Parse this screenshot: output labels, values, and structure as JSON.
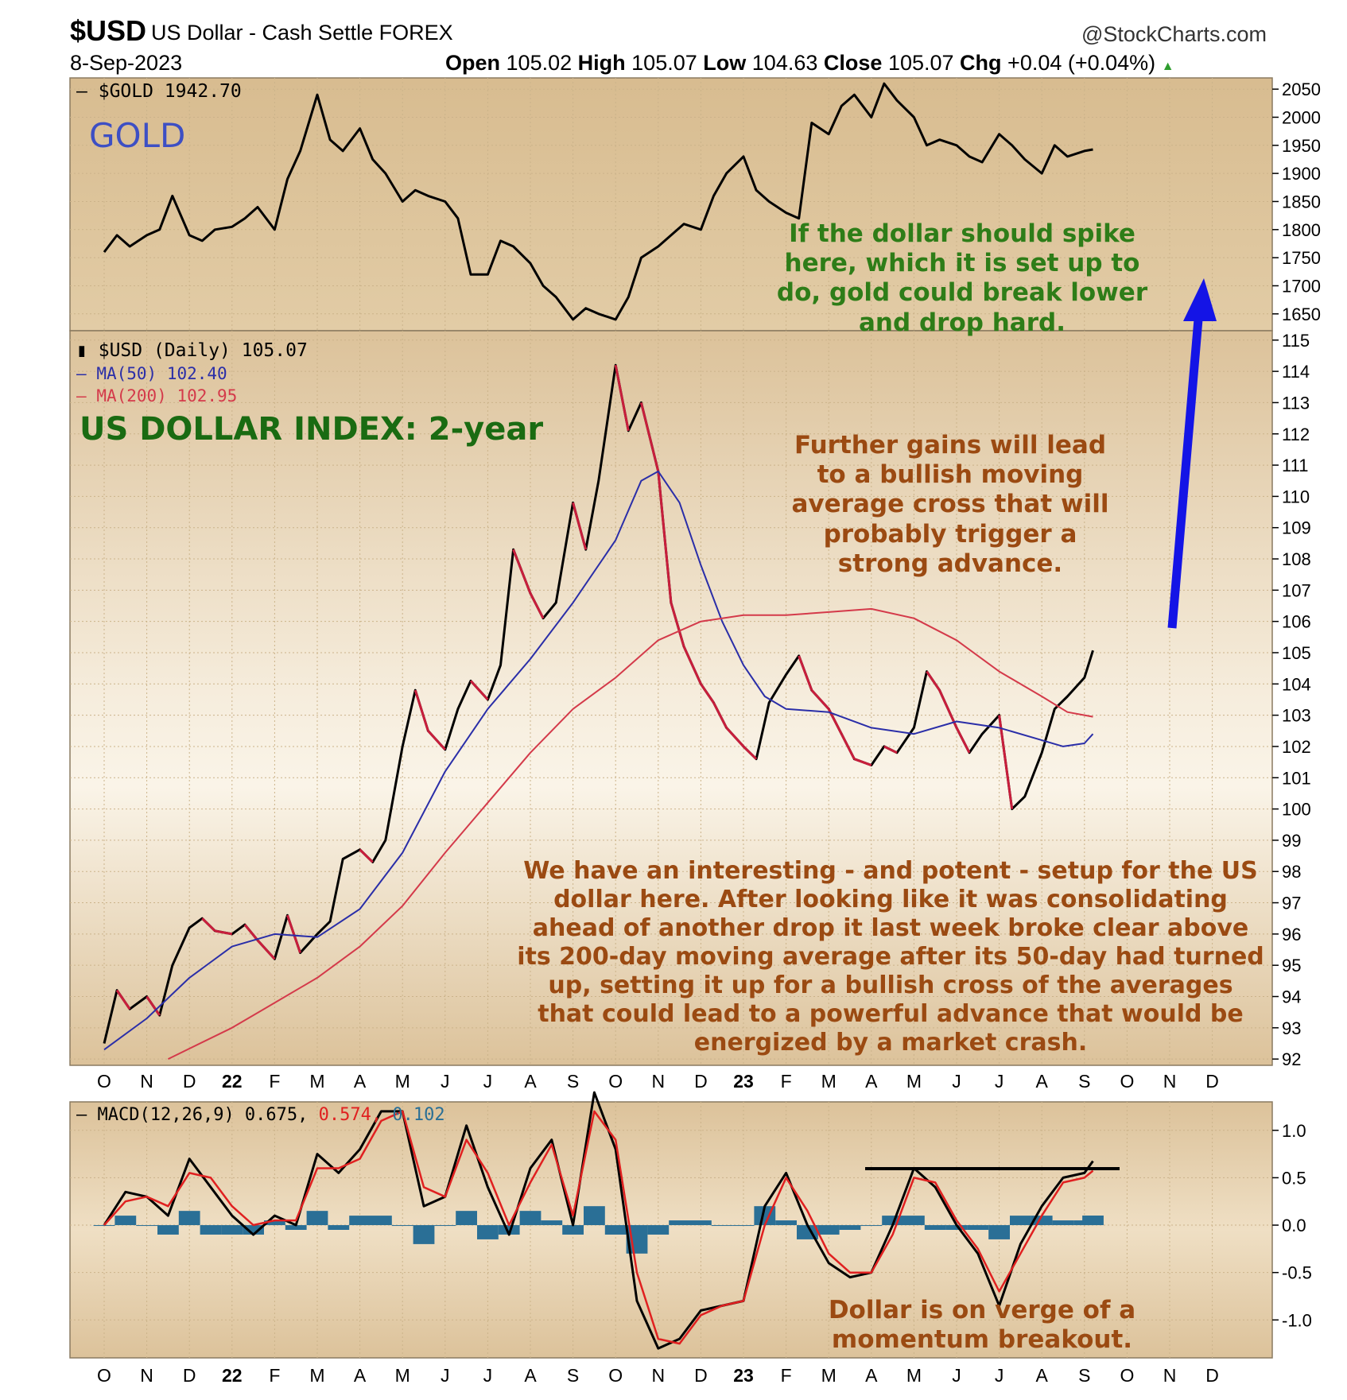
{
  "header": {
    "symbol": "$USD",
    "description": "US Dollar - Cash Settle FOREX",
    "source": "@StockCharts.com",
    "date": "8-Sep-2023",
    "open_label": "Open",
    "open_value": "105.02",
    "high_label": "High",
    "high_value": "105.07",
    "low_label": "Low",
    "low_value": "104.63",
    "close_label": "Close",
    "close_value": "105.07",
    "chg_label": "Chg",
    "chg_value": "+0.04 (+0.04%)"
  },
  "colors": {
    "panel_bg": "#dcc29a",
    "panel_highlight": "#f6eddd",
    "price_up": "#000000",
    "price_down": "#c81e3c",
    "ma50": "#2a2ea8",
    "ma200": "#d43a4a",
    "macd_line": "#000000",
    "signal_line": "#e02020",
    "histogram": "#2a6f96",
    "arrow": "#1414e6",
    "annotation_brown": "#9b4a12",
    "annotation_green": "#2e7d18"
  },
  "labels": {
    "gold": "GOLD",
    "usd_index": "US DOLLAR INDEX: 2-year",
    "gold_legend": "$GOLD 1942.70",
    "usd_legend": "$USD (Daily) 105.07",
    "ma50_legend": "MA(50) 102.40",
    "ma200_legend": "MA(200) 102.95",
    "macd_legend_main": "MACD(12,26,9) 0.675,",
    "macd_legend_signal": "0.574,",
    "macd_legend_hist": "0.102"
  },
  "annotations": {
    "gold": "If the dollar should spike here, which it is set up to do, gold could break lower and drop hard.",
    "cross": "Further gains will lead to a bullish moving average cross that will probably trigger a strong advance.",
    "setup": "We have an interesting - and potent - setup for the US dollar here. After looking like it was consolidating ahead of another drop it last week broke clear above its 200-day moving average after its 50-day had turned up, setting it up for a bullish cross of the averages that could lead to a powerful advance that would be energized by a market crash.",
    "momentum": "Dollar is on verge of a momentum breakout."
  },
  "chart_data": [
    {
      "type": "line",
      "panel": "gold",
      "title": "$GOLD 1942.70",
      "ylim": [
        1620,
        2070
      ],
      "yticks": [
        1650,
        1700,
        1750,
        1800,
        1850,
        1900,
        1950,
        2000,
        2050
      ],
      "x_months": [
        "O",
        "N",
        "D",
        "22",
        "F",
        "M",
        "A",
        "M",
        "J",
        "J",
        "A",
        "S",
        "O",
        "N",
        "D",
        "23",
        "F",
        "M",
        "A",
        "M",
        "J",
        "J",
        "A",
        "S",
        "O",
        "N",
        "D"
      ],
      "series": [
        {
          "name": "$GOLD",
          "x": [
            0,
            0.3,
            0.6,
            1,
            1.3,
            1.6,
            2,
            2.3,
            2.6,
            3,
            3.3,
            3.6,
            4,
            4.3,
            4.6,
            5,
            5.3,
            5.6,
            6,
            6.3,
            6.6,
            7,
            7.3,
            7.6,
            8,
            8.3,
            8.6,
            9,
            9.3,
            9.6,
            10,
            10.3,
            10.6,
            11,
            11.3,
            11.6,
            12,
            12.3,
            12.6,
            13,
            13.3,
            13.6,
            14,
            14.3,
            14.6,
            15,
            15.3,
            15.6,
            16,
            16.3,
            16.6,
            17,
            17.3,
            17.6,
            18,
            18.3,
            18.6,
            19,
            19.3,
            19.6,
            20,
            20.3,
            20.6,
            21,
            21.3,
            21.6,
            22,
            22.3,
            22.6,
            23,
            23.2
          ],
          "values": [
            1760,
            1790,
            1770,
            1790,
            1800,
            1860,
            1790,
            1780,
            1800,
            1805,
            1820,
            1840,
            1800,
            1890,
            1940,
            2040,
            1960,
            1940,
            1980,
            1925,
            1900,
            1850,
            1870,
            1860,
            1850,
            1820,
            1720,
            1720,
            1780,
            1770,
            1740,
            1700,
            1680,
            1640,
            1660,
            1650,
            1640,
            1680,
            1750,
            1770,
            1790,
            1810,
            1800,
            1860,
            1900,
            1930,
            1870,
            1850,
            1830,
            1820,
            1990,
            1970,
            2020,
            2040,
            2000,
            2060,
            2030,
            2000,
            1950,
            1960,
            1950,
            1930,
            1920,
            1970,
            1950,
            1925,
            1900,
            1950,
            1930,
            1940,
            1942.7
          ]
        }
      ]
    },
    {
      "type": "line",
      "panel": "usd",
      "title": "$USD (Daily) 105.07",
      "ylim": [
        91.8,
        115.3
      ],
      "yticks": [
        92,
        93,
        94,
        95,
        96,
        97,
        98,
        99,
        100,
        101,
        102,
        103,
        104,
        105,
        106,
        107,
        108,
        109,
        110,
        111,
        112,
        113,
        114,
        115
      ],
      "x_months": [
        "O",
        "N",
        "D",
        "22",
        "F",
        "M",
        "A",
        "M",
        "J",
        "J",
        "A",
        "S",
        "O",
        "N",
        "D",
        "23",
        "F",
        "M",
        "A",
        "M",
        "J",
        "J",
        "A",
        "S",
        "O",
        "N",
        "D"
      ],
      "series": [
        {
          "name": "$USD",
          "x": [
            0,
            0.3,
            0.6,
            1,
            1.3,
            1.6,
            2,
            2.3,
            2.6,
            3,
            3.3,
            3.6,
            4,
            4.3,
            4.6,
            5,
            5.3,
            5.6,
            6,
            6.3,
            6.6,
            7,
            7.3,
            7.6,
            8,
            8.3,
            8.6,
            9,
            9.3,
            9.6,
            10,
            10.3,
            10.6,
            11,
            11.3,
            11.6,
            12,
            12.3,
            12.6,
            13,
            13.3,
            13.6,
            14,
            14.3,
            14.6,
            15,
            15.3,
            15.6,
            16,
            16.3,
            16.6,
            17,
            17.3,
            17.6,
            18,
            18.3,
            18.6,
            19,
            19.3,
            19.6,
            20,
            20.3,
            20.6,
            21,
            21.3,
            21.6,
            22,
            22.3,
            22.6,
            23,
            23.2
          ],
          "values": [
            92.5,
            94.2,
            93.6,
            94.0,
            93.4,
            95.0,
            96.2,
            96.5,
            96.1,
            96.0,
            96.3,
            95.8,
            95.2,
            96.6,
            95.4,
            96.0,
            96.4,
            98.4,
            98.7,
            98.3,
            99.0,
            102.0,
            103.8,
            102.5,
            101.9,
            103.2,
            104.1,
            103.5,
            104.6,
            108.3,
            106.9,
            106.1,
            106.6,
            109.8,
            108.3,
            110.5,
            114.2,
            112.1,
            113.0,
            110.8,
            106.6,
            105.2,
            104.0,
            103.4,
            102.6,
            102.0,
            101.6,
            103.4,
            104.3,
            104.9,
            103.8,
            103.2,
            102.4,
            101.6,
            101.4,
            102.0,
            101.8,
            102.6,
            104.4,
            103.8,
            102.6,
            101.8,
            102.4,
            103.0,
            100.0,
            100.4,
            101.8,
            103.2,
            103.6,
            104.2,
            105.07
          ]
        },
        {
          "name": "MA(50)",
          "x": [
            0,
            1,
            2,
            3,
            4,
            5,
            6,
            7,
            8,
            9,
            10,
            11,
            12,
            12.6,
            13,
            13.5,
            14,
            14.5,
            15,
            15.5,
            16,
            17,
            18,
            19,
            20,
            21,
            22,
            22.5,
            23,
            23.2
          ],
          "values": [
            92.3,
            93.3,
            94.6,
            95.6,
            96.0,
            95.9,
            96.8,
            98.6,
            101.2,
            103.2,
            104.8,
            106.6,
            108.6,
            110.5,
            110.8,
            109.8,
            107.8,
            106.0,
            104.6,
            103.6,
            103.2,
            103.1,
            102.6,
            102.4,
            102.8,
            102.6,
            102.2,
            102.0,
            102.1,
            102.4
          ]
        },
        {
          "name": "MA(200)",
          "x": [
            1.5,
            3,
            4,
            5,
            6,
            7,
            8,
            9,
            10,
            11,
            12,
            13,
            14,
            15,
            16,
            17,
            18,
            19,
            20,
            21,
            22,
            22.6,
            23,
            23.2
          ],
          "values": [
            92.0,
            93.0,
            93.8,
            94.6,
            95.6,
            96.9,
            98.6,
            100.2,
            101.8,
            103.2,
            104.2,
            105.4,
            106.0,
            106.2,
            106.2,
            106.3,
            106.4,
            106.1,
            105.4,
            104.4,
            103.6,
            103.1,
            103.0,
            102.95
          ]
        }
      ]
    },
    {
      "type": "line",
      "panel": "macd",
      "title": "MACD(12,26,9) 0.675, 0.574, 0.102",
      "ylim": [
        -1.4,
        1.3
      ],
      "yticks": [
        -1.0,
        -0.5,
        0.0,
        0.5,
        1.0
      ],
      "x_months": [
        "O",
        "N",
        "D",
        "22",
        "F",
        "M",
        "A",
        "M",
        "J",
        "J",
        "A",
        "S",
        "O",
        "N",
        "D",
        "23",
        "F",
        "M",
        "A",
        "M",
        "J",
        "J",
        "A",
        "S",
        "O",
        "N",
        "D"
      ],
      "series": [
        {
          "name": "MACD",
          "x": [
            0,
            0.5,
            1,
            1.5,
            2,
            2.5,
            3,
            3.5,
            4,
            4.5,
            5,
            5.5,
            6,
            6.5,
            7,
            7.5,
            8,
            8.5,
            9,
            9.5,
            10,
            10.5,
            11,
            11.5,
            12,
            12.5,
            13,
            13.5,
            14,
            14.5,
            15,
            15.5,
            16,
            16.5,
            17,
            17.5,
            18,
            18.5,
            19,
            19.5,
            20,
            20.5,
            21,
            21.5,
            22,
            22.5,
            23,
            23.2
          ],
          "values": [
            0.0,
            0.35,
            0.3,
            0.1,
            0.7,
            0.4,
            0.1,
            -0.1,
            0.1,
            0.0,
            0.75,
            0.55,
            0.8,
            1.2,
            1.2,
            0.2,
            0.3,
            1.05,
            0.4,
            -0.1,
            0.6,
            0.9,
            0.0,
            1.4,
            0.8,
            -0.8,
            -1.3,
            -1.2,
            -0.9,
            -0.85,
            -0.8,
            0.2,
            0.55,
            0.0,
            -0.4,
            -0.55,
            -0.5,
            0.0,
            0.6,
            0.4,
            0.0,
            -0.3,
            -0.85,
            -0.2,
            0.2,
            0.5,
            0.55,
            0.675
          ]
        },
        {
          "name": "Signal",
          "x": [
            0,
            0.5,
            1,
            1.5,
            2,
            2.5,
            3,
            3.5,
            4,
            4.5,
            5,
            5.5,
            6,
            6.5,
            7,
            7.5,
            8,
            8.5,
            9,
            9.5,
            10,
            10.5,
            11,
            11.5,
            12,
            12.5,
            13,
            13.5,
            14,
            14.5,
            15,
            15.5,
            16,
            16.5,
            17,
            17.5,
            18,
            18.5,
            19,
            19.5,
            20,
            20.5,
            21,
            21.5,
            22,
            22.5,
            23,
            23.2
          ],
          "values": [
            0.0,
            0.25,
            0.3,
            0.2,
            0.55,
            0.5,
            0.2,
            0.0,
            0.05,
            0.05,
            0.6,
            0.6,
            0.7,
            1.1,
            1.2,
            0.4,
            0.3,
            0.9,
            0.55,
            0.0,
            0.45,
            0.85,
            0.1,
            1.2,
            0.9,
            -0.5,
            -1.2,
            -1.25,
            -0.95,
            -0.85,
            -0.8,
            0.0,
            0.5,
            0.15,
            -0.3,
            -0.5,
            -0.5,
            -0.1,
            0.5,
            0.45,
            0.05,
            -0.25,
            -0.7,
            -0.3,
            0.1,
            0.45,
            0.5,
            0.574
          ]
        }
      ]
    }
  ]
}
